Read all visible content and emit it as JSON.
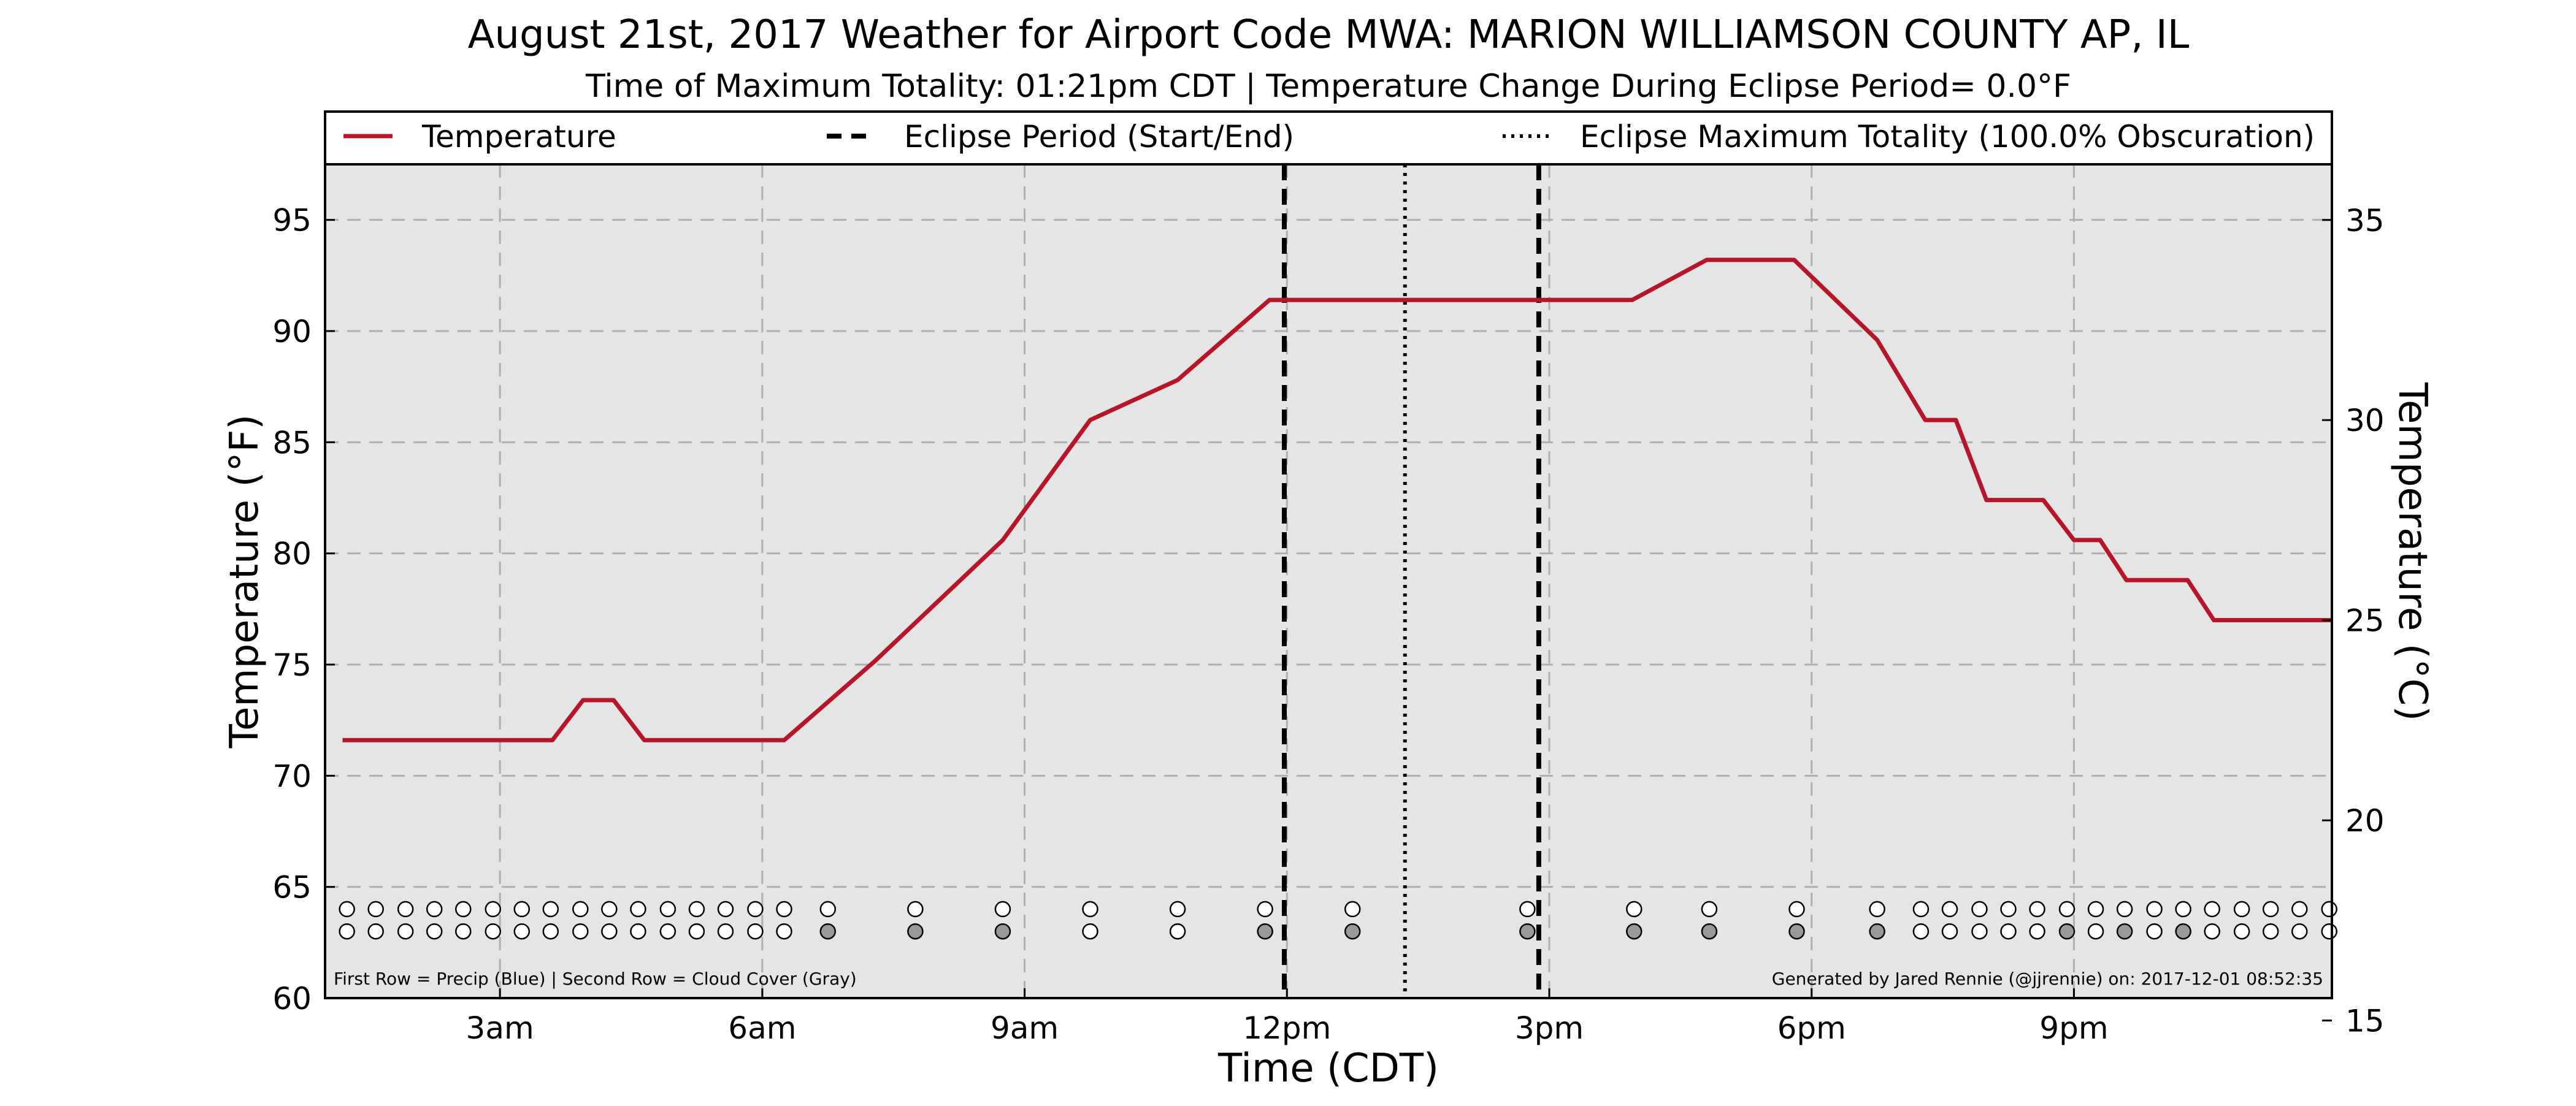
{
  "chart_data": {
    "type": "line",
    "title": "August 21st, 2017 Weather for Airport Code MWA: MARION WILLIAMSON COUNTY AP, IL",
    "subtitle": "Time of Maximum Totality: 01:21pm CDT | Temperature Change During Eclipse Period= 0.0°F",
    "xlabel": "Time (CDT)",
    "ylabel": "Temperature (°F)",
    "ylabel_right": "Temperature (°C)",
    "xlim": [
      1.0,
      23.95
    ],
    "ylim": [
      60,
      97.5
    ],
    "ylim_right": [
      15.56,
      36.39
    ],
    "x_ticks": [
      {
        "x": 3,
        "label": "3am"
      },
      {
        "x": 6,
        "label": "6am"
      },
      {
        "x": 9,
        "label": "9am"
      },
      {
        "x": 12,
        "label": "12pm"
      },
      {
        "x": 15,
        "label": "3pm"
      },
      {
        "x": 18,
        "label": "6pm"
      },
      {
        "x": 21,
        "label": "9pm"
      }
    ],
    "y_ticks": [
      60,
      65,
      70,
      75,
      80,
      85,
      90,
      95
    ],
    "y_ticks_right": [
      15,
      20,
      25,
      30,
      35
    ],
    "grid": true,
    "legend_position": "top",
    "legend": [
      {
        "label": "Temperature",
        "style": "solid"
      },
      {
        "label": "Eclipse Period (Start/End)",
        "style": "dashed"
      },
      {
        "label": "Eclipse Maximum Totality (100.0% Obscuration)",
        "style": "dotted"
      }
    ],
    "series": [
      {
        "name": "Temperature",
        "color": "#b5162b",
        "points": [
          [
            1.2,
            71.6
          ],
          [
            3.6,
            71.6
          ],
          [
            3.95,
            73.4
          ],
          [
            4.3,
            73.4
          ],
          [
            4.65,
            71.6
          ],
          [
            6.25,
            71.6
          ],
          [
            7.3,
            75.2
          ],
          [
            8.75,
            80.6
          ],
          [
            9.75,
            86.0
          ],
          [
            10.75,
            87.8
          ],
          [
            11.8,
            91.4
          ],
          [
            15.95,
            91.4
          ],
          [
            16.8,
            93.2
          ],
          [
            17.8,
            93.2
          ],
          [
            18.75,
            89.6
          ],
          [
            19.3,
            86.0
          ],
          [
            19.65,
            86.0
          ],
          [
            20.0,
            82.4
          ],
          [
            20.65,
            82.4
          ],
          [
            21.0,
            80.6
          ],
          [
            21.3,
            80.6
          ],
          [
            21.6,
            78.8
          ],
          [
            22.3,
            78.8
          ],
          [
            22.6,
            77.0
          ],
          [
            23.95,
            77.0
          ]
        ]
      }
    ],
    "eclipse_start": 11.97,
    "eclipse_end": 14.88,
    "eclipse_max": 13.35,
    "dot_rows": {
      "x": [
        1.25,
        1.58,
        1.92,
        2.25,
        2.58,
        2.92,
        3.25,
        3.58,
        3.92,
        4.25,
        4.58,
        4.92,
        5.25,
        5.58,
        5.92,
        6.25,
        6.75,
        7.75,
        8.75,
        9.75,
        10.75,
        11.75,
        12.75,
        14.75,
        15.97,
        16.83,
        17.83,
        18.75,
        19.25,
        19.58,
        19.92,
        20.25,
        20.58,
        20.92,
        21.25,
        21.58,
        21.92,
        22.25,
        22.58,
        22.92,
        23.25,
        23.58,
        23.92
      ],
      "precip_y": 64.0,
      "cloud_y": 63.0,
      "cloud_filled": [
        16,
        17,
        18,
        21,
        22,
        23,
        24,
        25,
        26,
        27,
        33,
        35,
        37
      ],
      "precip_color": "#ffffff",
      "cloud_gray": "#999999",
      "empty_color": "#ffffff"
    },
    "note_left": "First Row = Precip (Blue) | Second Row = Cloud Cover (Gray)",
    "note_right": "Generated by Jared Rennie (@jjrennie) on: 2017-12-01 08:52:35"
  },
  "colors": {
    "plot_background": "#e5e5e5",
    "temperature": "#b5162b",
    "grid": "#b0b0b0"
  }
}
